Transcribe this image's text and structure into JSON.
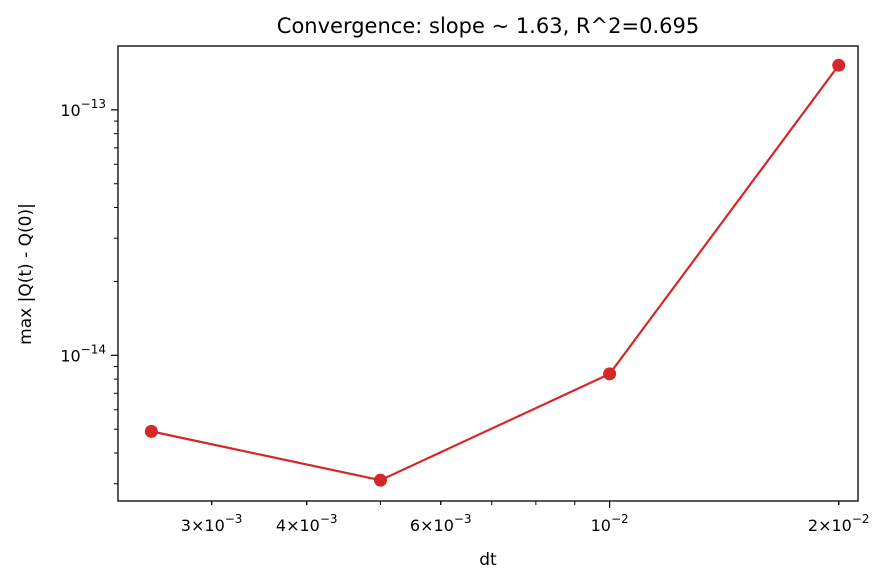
{
  "chart_data": {
    "type": "line",
    "title": "Convergence: slope ~ 1.63, R^2=0.695",
    "xlabel": "dt",
    "ylabel": "max |Q(t) - Q(0)|",
    "xscale": "log",
    "yscale": "log",
    "xlim": [
      0.00226,
      0.0212
    ],
    "ylim": [
      2.55e-15,
      1.82e-13
    ],
    "grid": false,
    "legend": "none",
    "marker": "circle",
    "color": "#d62728",
    "x_ticks": [
      {
        "value": 0.003,
        "mantissa": "3",
        "base": "10",
        "exp": "−3"
      },
      {
        "value": 0.004,
        "mantissa": "4",
        "base": "10",
        "exp": "−3"
      },
      {
        "value": 0.006,
        "mantissa": "6",
        "base": "10",
        "exp": "−3"
      },
      {
        "value": 0.01,
        "mantissa": "",
        "base": "10",
        "exp": "−2"
      },
      {
        "value": 0.02,
        "mantissa": "2",
        "base": "10",
        "exp": "−2"
      }
    ],
    "y_ticks": [
      {
        "value": 1e-14,
        "mantissa": "",
        "base": "10",
        "exp": "−14"
      },
      {
        "value": 1e-13,
        "mantissa": "",
        "base": "10",
        "exp": "−13"
      }
    ],
    "x": [
      0.0025,
      0.005,
      0.01,
      0.02
    ],
    "series": [
      {
        "values": [
          4.9e-15,
          3.1e-15,
          8.4e-15,
          1.52e-13
        ]
      }
    ]
  }
}
